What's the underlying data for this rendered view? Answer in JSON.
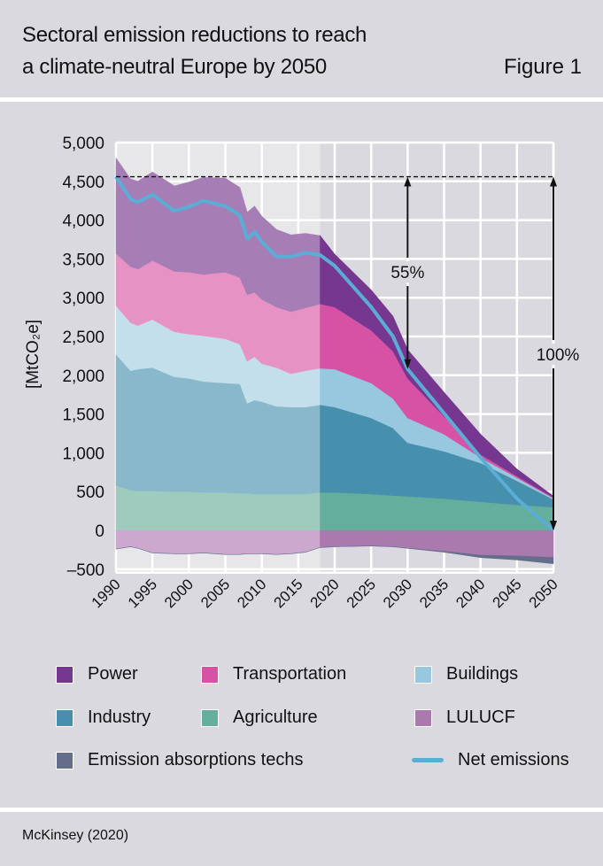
{
  "header": {
    "title_line1": "Sectoral emission reductions to reach",
    "title_line2": "a climate-neutral Europe by 2050",
    "figure_label": "Figure 1"
  },
  "footer": {
    "source": "McKinsey (2020)"
  },
  "legend": [
    {
      "label": "Power",
      "color": "#763791"
    },
    {
      "label": "Transportation",
      "color": "#d752a4"
    },
    {
      "label": "Buildings",
      "color": "#97c8e0"
    },
    {
      "label": "Industry",
      "color": "#4690ae"
    },
    {
      "label": "Agriculture",
      "color": "#63ae9c"
    },
    {
      "label": "LULUCF",
      "color": "#aa79ae"
    },
    {
      "label": "Emission absorptions techs",
      "color": "#646d8a"
    },
    {
      "label": "Net emissions",
      "color": "#5aaed6"
    }
  ],
  "chart_data": {
    "type": "area",
    "stacked": true,
    "ylabel": "[MtCO₂e]",
    "ylim": [
      -500,
      5000
    ],
    "yticks": [
      "5,000",
      "4,500",
      "4,000",
      "3,500",
      "3,000",
      "2,500",
      "2,000",
      "1,500",
      "1,000",
      "500",
      "0",
      "–500"
    ],
    "ytick_values": [
      5000,
      4500,
      4000,
      3500,
      3000,
      2500,
      2000,
      1500,
      1000,
      500,
      0,
      -500
    ],
    "xlim": [
      1990,
      2050
    ],
    "xticks": [
      "1990",
      "1995",
      "2000",
      "2005",
      "2010",
      "2015",
      "2020",
      "2025",
      "2030",
      "2035",
      "2040",
      "2045",
      "2050"
    ],
    "grid": true,
    "historical_until": 2018,
    "historical_colors": {
      "Power": "#a77db5",
      "Transportation": "#e692c4",
      "Buildings": "#c3dfec",
      "Industry": "#89b8cb",
      "Agriculture": "#9ecbbd",
      "LULUCF": "#cca8cf",
      "Emission absorptions techs": "#646d8a"
    },
    "x": [
      1990,
      1992,
      1993,
      1995,
      1998,
      2000,
      2002,
      2005,
      2007,
      2008,
      2009,
      2010,
      2012,
      2014,
      2016,
      2018,
      2020,
      2025,
      2028,
      2030,
      2035,
      2040,
      2045,
      2050
    ],
    "series": [
      {
        "name": "Agriculture",
        "values": [
          580,
          520,
          510,
          510,
          500,
          500,
          490,
          490,
          480,
          480,
          470,
          470,
          470,
          470,
          470,
          490,
          490,
          470,
          450,
          440,
          410,
          370,
          330,
          300
        ]
      },
      {
        "name": "Industry",
        "values": [
          1690,
          1540,
          1570,
          1590,
          1480,
          1460,
          1430,
          1410,
          1410,
          1160,
          1210,
          1190,
          1130,
          1120,
          1120,
          1130,
          1100,
          980,
          870,
          690,
          610,
          500,
          310,
          100
        ]
      },
      {
        "name": "Buildings",
        "values": [
          630,
          620,
          560,
          620,
          580,
          570,
          590,
          570,
          510,
          540,
          560,
          490,
          500,
          430,
          470,
          470,
          490,
          450,
          380,
          320,
          220,
          70,
          40,
          15
        ]
      },
      {
        "name": "Transportation",
        "values": [
          670,
          720,
          730,
          760,
          780,
          800,
          790,
          860,
          860,
          860,
          830,
          830,
          780,
          800,
          810,
          830,
          800,
          680,
          610,
          510,
          230,
          40,
          20,
          10
        ]
      },
      {
        "name": "Power",
        "values": [
          1230,
          1130,
          1130,
          1140,
          1100,
          1160,
          1250,
          1210,
          1160,
          1060,
          1110,
          1070,
          1000,
          990,
          960,
          880,
          680,
          520,
          450,
          370,
          310,
          260,
          90,
          15
        ]
      },
      {
        "name": "LULUCF",
        "values": [
          -240,
          -210,
          -230,
          -290,
          -300,
          -300,
          -290,
          -310,
          -310,
          -300,
          -300,
          -300,
          -310,
          -300,
          -280,
          -220,
          -210,
          -200,
          -210,
          -230,
          -270,
          -320,
          -330,
          -350
        ]
      },
      {
        "name": "Emission absorptions techs",
        "values": [
          0,
          0,
          0,
          0,
          0,
          0,
          0,
          0,
          0,
          0,
          0,
          0,
          0,
          0,
          0,
          0,
          0,
          0,
          0,
          0,
          -10,
          -30,
          -50,
          -80
        ]
      },
      {
        "name": "Net emissions",
        "type": "line",
        "values": [
          4560,
          4270,
          4230,
          4330,
          4120,
          4170,
          4250,
          4180,
          4060,
          3760,
          3850,
          3720,
          3530,
          3530,
          3580,
          3550,
          3410,
          2880,
          2500,
          2080,
          1510,
          940,
          410,
          0
        ]
      }
    ],
    "reference_level": 4560,
    "annotations": [
      {
        "label": "55%",
        "year": 2030,
        "from": 4560,
        "to": 2080
      },
      {
        "label": "100%",
        "year": 2050,
        "from": 4560,
        "to": 0
      }
    ]
  }
}
